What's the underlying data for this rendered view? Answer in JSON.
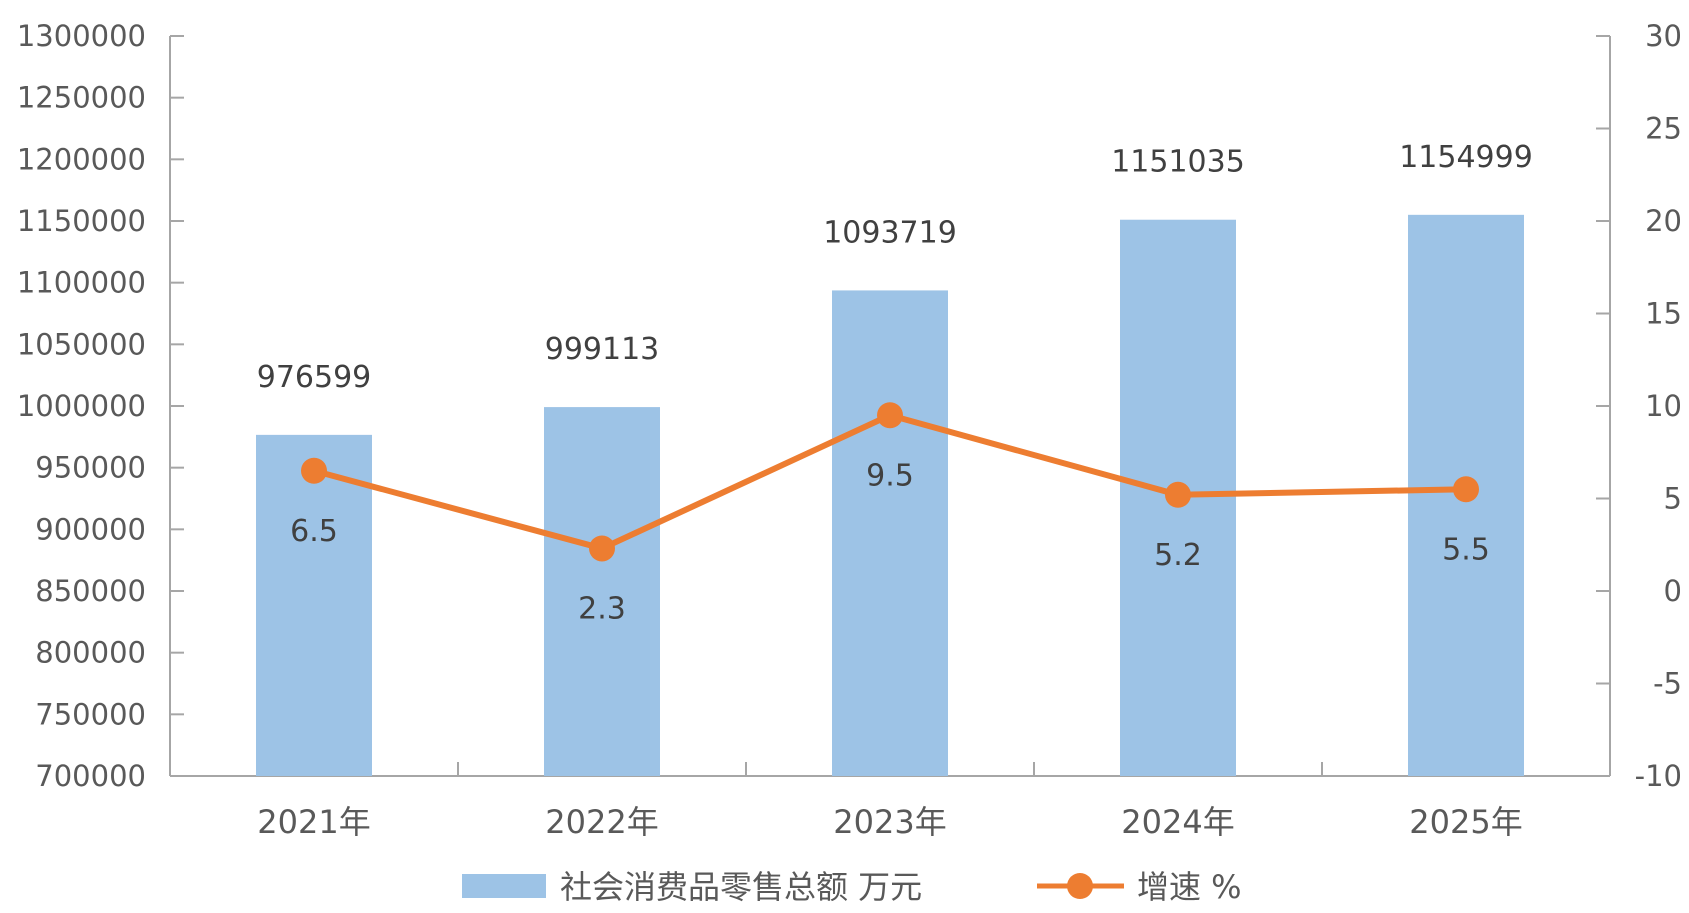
{
  "chart_data": {
    "type": "bar",
    "categories": [
      "2021年",
      "2022年",
      "2023年",
      "2024年",
      "2025年"
    ],
    "series": [
      {
        "name": "社会消费品零售总额 万元",
        "type": "bar",
        "axis": "left",
        "values": [
          976599,
          999113,
          1093719,
          1151035,
          1154999
        ],
        "labels": [
          "976599",
          "999113",
          "1093719",
          "1151035",
          "1154999"
        ],
        "color": "#9dc3e6"
      },
      {
        "name": "增速 %",
        "type": "line",
        "axis": "right",
        "values": [
          6.5,
          2.3,
          9.5,
          5.2,
          5.5
        ],
        "labels": [
          "6.5",
          "2.3",
          "9.5",
          "5.2",
          "5.5"
        ],
        "color": "#ed7d31"
      }
    ],
    "y_left": {
      "range": [
        700000,
        1300000
      ],
      "ticks": [
        "700000",
        "750000",
        "800000",
        "850000",
        "900000",
        "950000",
        "1000000",
        "1050000",
        "1100000",
        "1150000",
        "1200000",
        "1250000",
        "1300000"
      ]
    },
    "y_right": {
      "range": [
        -10,
        30
      ],
      "ticks": [
        "-10",
        "-5",
        "0",
        "5",
        "10",
        "15",
        "20",
        "25",
        "30"
      ]
    },
    "grid": false,
    "legend": "bottom"
  }
}
